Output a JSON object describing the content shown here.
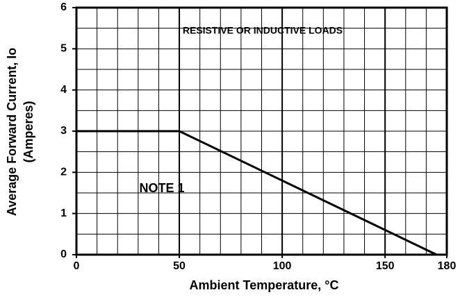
{
  "chart_data": {
    "type": "line",
    "x_label": "Ambient  Temperature, °C",
    "y_label": [
      "Average Forward Current, Io",
      "(Amperes)"
    ],
    "annotations": [
      "RESISTIVE OR INDUCTIVE LOADS",
      "NOTE 1"
    ],
    "x": [
      0,
      50,
      175
    ],
    "series": [
      {
        "color": "#000000",
        "values": [
          3,
          3,
          0
        ]
      }
    ],
    "xlim": [
      0,
      180
    ],
    "xticks": [
      0,
      50,
      100,
      150,
      180
    ],
    "ylim": [
      0,
      6
    ],
    "yticks": [
      0,
      1,
      2,
      3,
      4,
      5,
      6
    ],
    "xgrid": [
      10,
      20,
      30,
      40,
      50,
      60,
      70,
      80,
      90,
      100,
      110,
      120,
      130,
      140,
      150,
      160,
      170
    ],
    "ygrid": [
      0.5,
      1,
      1.5,
      2,
      2.5,
      3,
      3.5,
      4,
      4.5,
      5,
      5.5
    ],
    "xmajor": [
      50,
      100,
      150
    ],
    "grid": true
  }
}
